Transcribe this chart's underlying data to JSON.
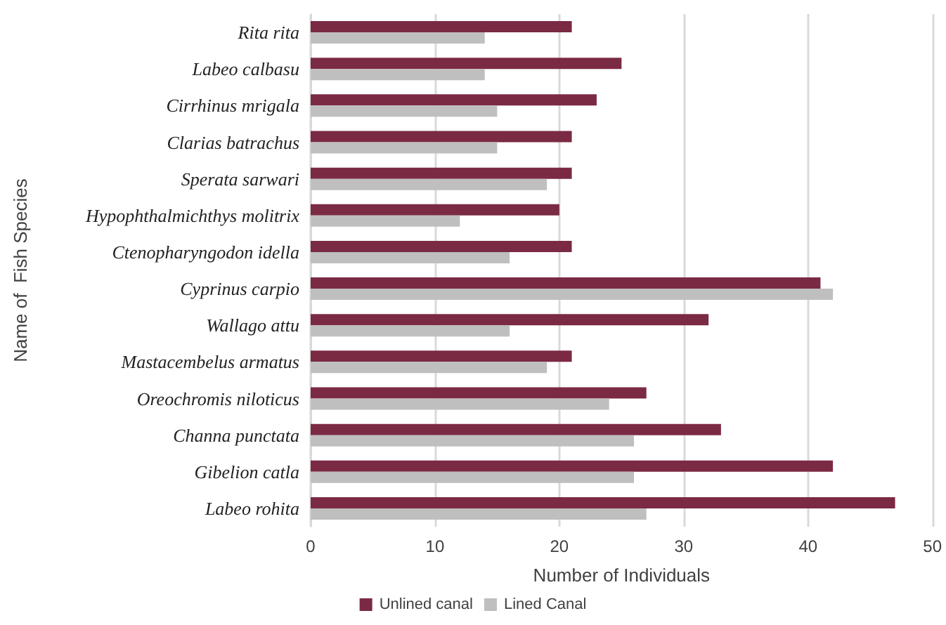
{
  "chart_data": {
    "type": "bar",
    "orientation": "horizontal",
    "xlabel": "Number of Individuals",
    "ylabel": "Name of  Fish Species",
    "categories": [
      "Rita rita",
      "Labeo calbasu",
      "Cirrhinus mrigala",
      "Clarias batrachus",
      "Sperata sarwari",
      "Hypophthalmichthys molitrix",
      "Ctenopharyngodon idella",
      "Cyprinus carpio",
      "Wallago attu",
      "Mastacembelus armatus",
      "Oreochromis niloticus",
      "Channa punctata",
      "Gibelion catla",
      "Labeo rohita"
    ],
    "series": [
      {
        "name": "Unlined canal",
        "color": "#7b2a43",
        "values": [
          21,
          25,
          23,
          21,
          21,
          20,
          21,
          41,
          32,
          21,
          27,
          33,
          42,
          47
        ]
      },
      {
        "name": "Lined Canal",
        "color": "#bfbfbf",
        "values": [
          14,
          14,
          15,
          15,
          19,
          12,
          16,
          42,
          16,
          19,
          24,
          26,
          26,
          27
        ]
      }
    ],
    "xlim": [
      0,
      50
    ],
    "xticks": [
      0,
      10,
      20,
      30,
      40,
      50
    ],
    "grid": "x",
    "legend": "bottom"
  }
}
